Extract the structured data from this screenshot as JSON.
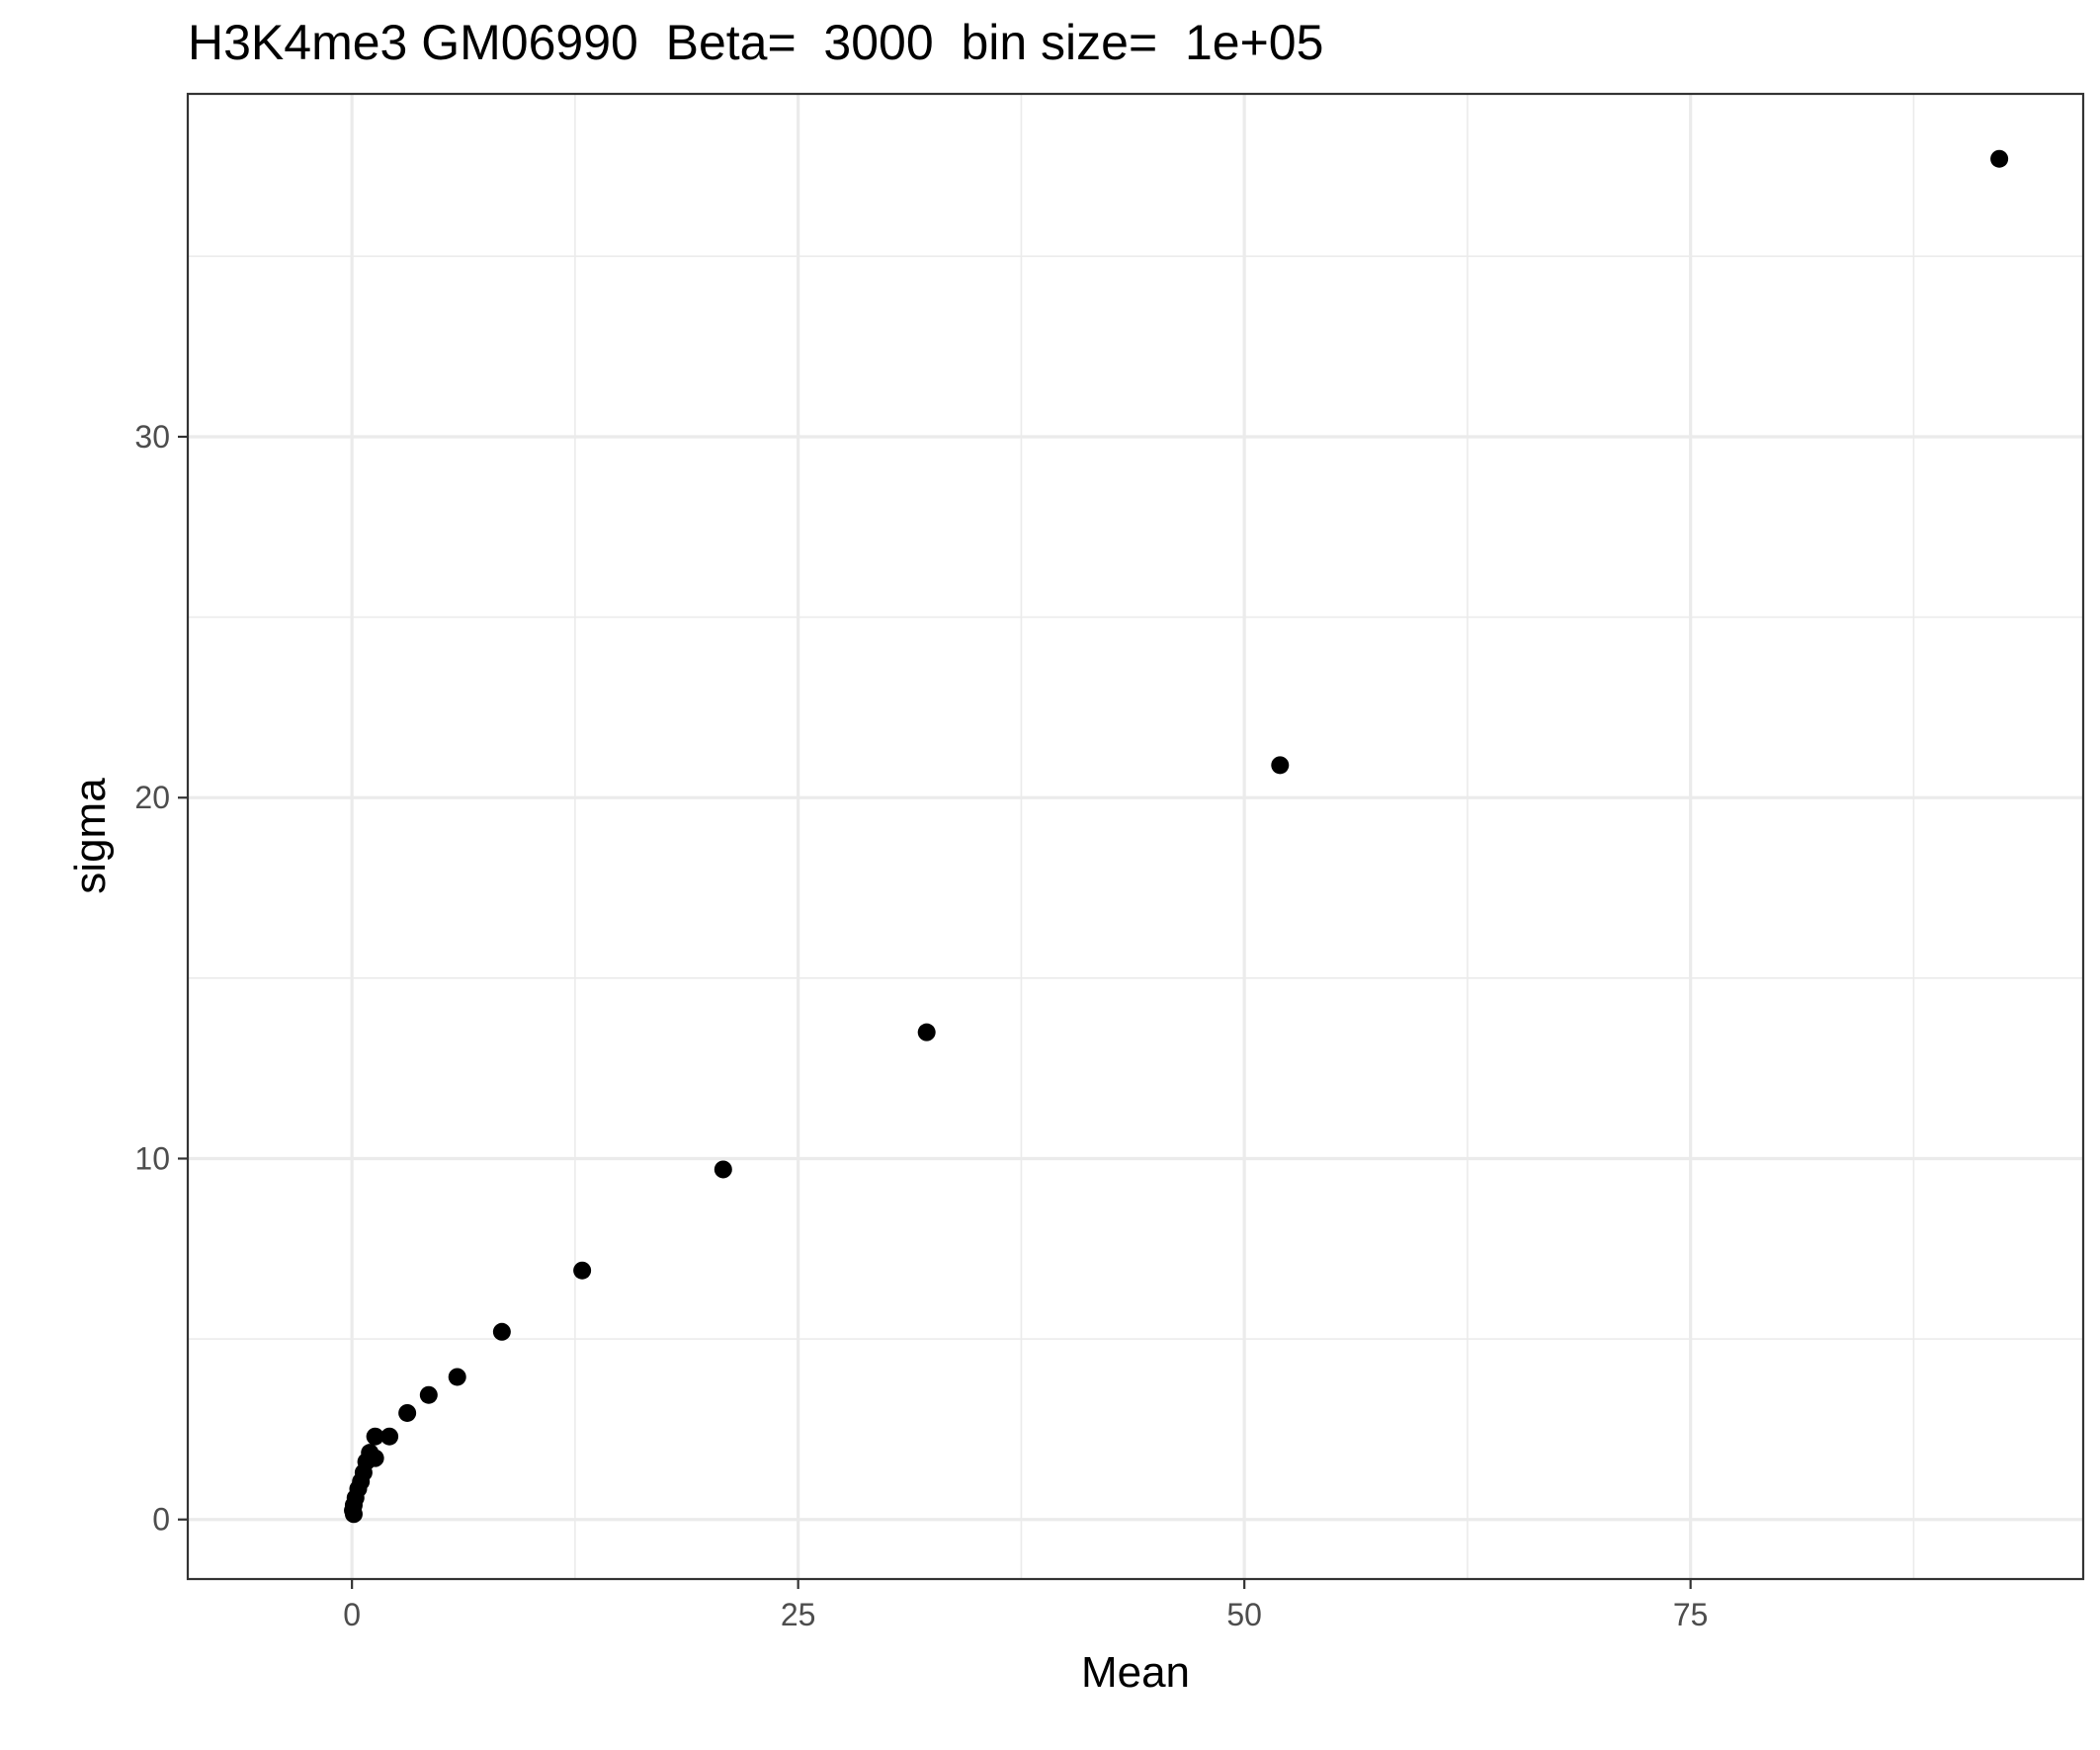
{
  "chart_data": {
    "type": "scatter",
    "title": "H3K4me3 GM06990  Beta=  3000  bin size=  1e+05",
    "xlabel": "Mean",
    "ylabel": "sigma",
    "xlim": [
      -9.2,
      97.0
    ],
    "ylim": [
      -1.65,
      39.5
    ],
    "x_major_ticks": [
      0,
      25,
      50,
      75
    ],
    "x_minor_ticks": [
      12.5,
      37.5,
      62.5,
      87.5
    ],
    "y_major_ticks": [
      0,
      10,
      20,
      30
    ],
    "y_minor_ticks": [
      5,
      15,
      25,
      35
    ],
    "x_tick_labels": [
      "0",
      "25",
      "50",
      "75"
    ],
    "y_tick_labels": [
      "0",
      "10",
      "20",
      "30"
    ],
    "grid": true,
    "theme": "bw",
    "point_color": "#000000",
    "points": [
      {
        "x": 92.3,
        "y": 37.7
      },
      {
        "x": 52.0,
        "y": 20.9
      },
      {
        "x": 32.2,
        "y": 13.5
      },
      {
        "x": 20.8,
        "y": 9.7
      },
      {
        "x": 12.9,
        "y": 6.9
      },
      {
        "x": 8.4,
        "y": 5.2
      },
      {
        "x": 5.9,
        "y": 3.95
      },
      {
        "x": 4.3,
        "y": 3.45
      },
      {
        "x": 3.1,
        "y": 2.95
      },
      {
        "x": 2.1,
        "y": 2.3
      },
      {
        "x": 1.3,
        "y": 2.3
      },
      {
        "x": 1.3,
        "y": 1.7
      },
      {
        "x": 1.0,
        "y": 1.85
      },
      {
        "x": 0.8,
        "y": 1.6
      },
      {
        "x": 0.65,
        "y": 1.3
      },
      {
        "x": 0.5,
        "y": 1.05
      },
      {
        "x": 0.35,
        "y": 0.85
      },
      {
        "x": 0.2,
        "y": 0.6
      },
      {
        "x": 0.1,
        "y": 0.4
      },
      {
        "x": 0.05,
        "y": 0.25
      },
      {
        "x": 0.1,
        "y": 0.15
      }
    ]
  }
}
